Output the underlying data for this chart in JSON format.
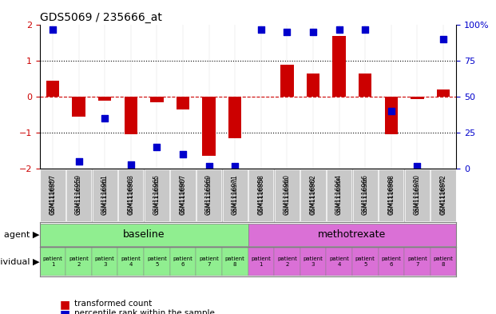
{
  "title": "GDS5069 / 235666_at",
  "samples": [
    "GSM1116957",
    "GSM1116959",
    "GSM1116961",
    "GSM1116963",
    "GSM1116965",
    "GSM1116967",
    "GSM1116969",
    "GSM1116971",
    "GSM1116958",
    "GSM1116960",
    "GSM1116962",
    "GSM1116964",
    "GSM1116966",
    "GSM1116968",
    "GSM1116970",
    "GSM1116972"
  ],
  "bar_values": [
    0.45,
    -0.55,
    -0.1,
    -1.05,
    -0.15,
    -0.35,
    -1.65,
    -1.15,
    0.0,
    0.9,
    0.65,
    1.7,
    0.65,
    -1.05,
    -0.05,
    0.2
  ],
  "dot_values": [
    97,
    5,
    35,
    3,
    15,
    10,
    2,
    2,
    97,
    95,
    95,
    97,
    97,
    40,
    2,
    90
  ],
  "agent_groups": [
    {
      "label": "baseline",
      "start": 0,
      "end": 8,
      "color": "#90EE90"
    },
    {
      "label": "methotrexate",
      "start": 8,
      "end": 16,
      "color": "#DA70D6"
    }
  ],
  "individual_labels": [
    "patient\n1",
    "patient\n2",
    "patient\n3",
    "patient\n4",
    "patient\n5",
    "patient\n6",
    "patient\n7",
    "patient\n8",
    "patient\n1",
    "patient\n2",
    "patient\n3",
    "patient\n4",
    "patient\n5",
    "patient\n6",
    "patient\n7",
    "patient\n8"
  ],
  "individual_colors_baseline": "#90EE90",
  "individual_colors_methotrexate": "#DA70D6",
  "ylim": [
    -2,
    2
  ],
  "y2lim": [
    0,
    100
  ],
  "yticks": [
    -2,
    -1,
    0,
    1,
    2
  ],
  "y2ticks": [
    0,
    25,
    50,
    75,
    100
  ],
  "bar_color": "#CC0000",
  "dot_color": "#0000CC",
  "zero_line_color": "#CC0000",
  "dotted_line_color": "#000000",
  "bg_color": "#FFFFFF",
  "sample_box_color": "#C0C0C0",
  "legend_bar_label": "transformed count",
  "legend_dot_label": "percentile rank within the sample",
  "agent_label": "agent",
  "individual_label": "individual"
}
